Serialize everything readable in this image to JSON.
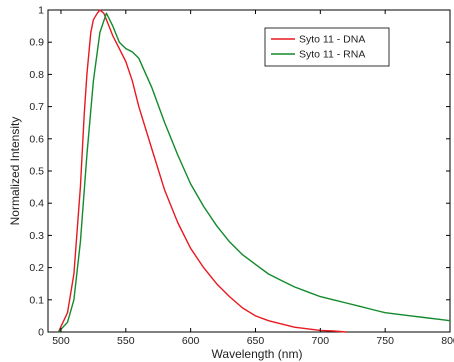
{
  "chart_data": {
    "type": "line",
    "title": "",
    "xlabel": "Wavelength (nm)",
    "ylabel": "Normalized Intensity",
    "xlim": [
      490,
      800
    ],
    "ylim": [
      0,
      1
    ],
    "xticks": [
      500,
      550,
      600,
      650,
      700,
      750,
      800
    ],
    "yticks": [
      0,
      0.1,
      0.2,
      0.3,
      0.4,
      0.5,
      0.6,
      0.7,
      0.8,
      0.9,
      1
    ],
    "grid": false,
    "legend": {
      "position": "top-right"
    },
    "series": [
      {
        "name": "Syto 11 - DNA",
        "color": "#e8191f",
        "x": [
          498,
          505,
          510,
          515,
          518,
          520,
          523,
          525,
          528,
          530,
          533,
          536,
          540,
          545,
          550,
          555,
          560,
          570,
          580,
          590,
          600,
          610,
          620,
          630,
          640,
          650,
          660,
          670,
          680,
          690,
          700,
          710,
          720
        ],
        "y": [
          0.0,
          0.06,
          0.18,
          0.45,
          0.68,
          0.8,
          0.93,
          0.97,
          0.99,
          1.0,
          0.99,
          0.96,
          0.92,
          0.88,
          0.84,
          0.78,
          0.7,
          0.57,
          0.44,
          0.34,
          0.26,
          0.2,
          0.15,
          0.11,
          0.075,
          0.05,
          0.035,
          0.025,
          0.015,
          0.01,
          0.005,
          0.003,
          0.0
        ]
      },
      {
        "name": "Syto 11 - RNA",
        "color": "#138a2c",
        "x": [
          498,
          505,
          510,
          515,
          520,
          525,
          530,
          535,
          540,
          545,
          550,
          555,
          560,
          570,
          580,
          590,
          600,
          610,
          620,
          630,
          640,
          650,
          660,
          670,
          680,
          690,
          700,
          710,
          720,
          730,
          740,
          750,
          760,
          770,
          780,
          790,
          800
        ],
        "y": [
          0.0,
          0.03,
          0.1,
          0.28,
          0.55,
          0.78,
          0.93,
          0.99,
          0.95,
          0.9,
          0.88,
          0.87,
          0.85,
          0.76,
          0.65,
          0.55,
          0.46,
          0.39,
          0.33,
          0.28,
          0.24,
          0.21,
          0.18,
          0.16,
          0.14,
          0.125,
          0.11,
          0.1,
          0.09,
          0.08,
          0.07,
          0.06,
          0.055,
          0.05,
          0.045,
          0.04,
          0.035
        ]
      }
    ]
  }
}
